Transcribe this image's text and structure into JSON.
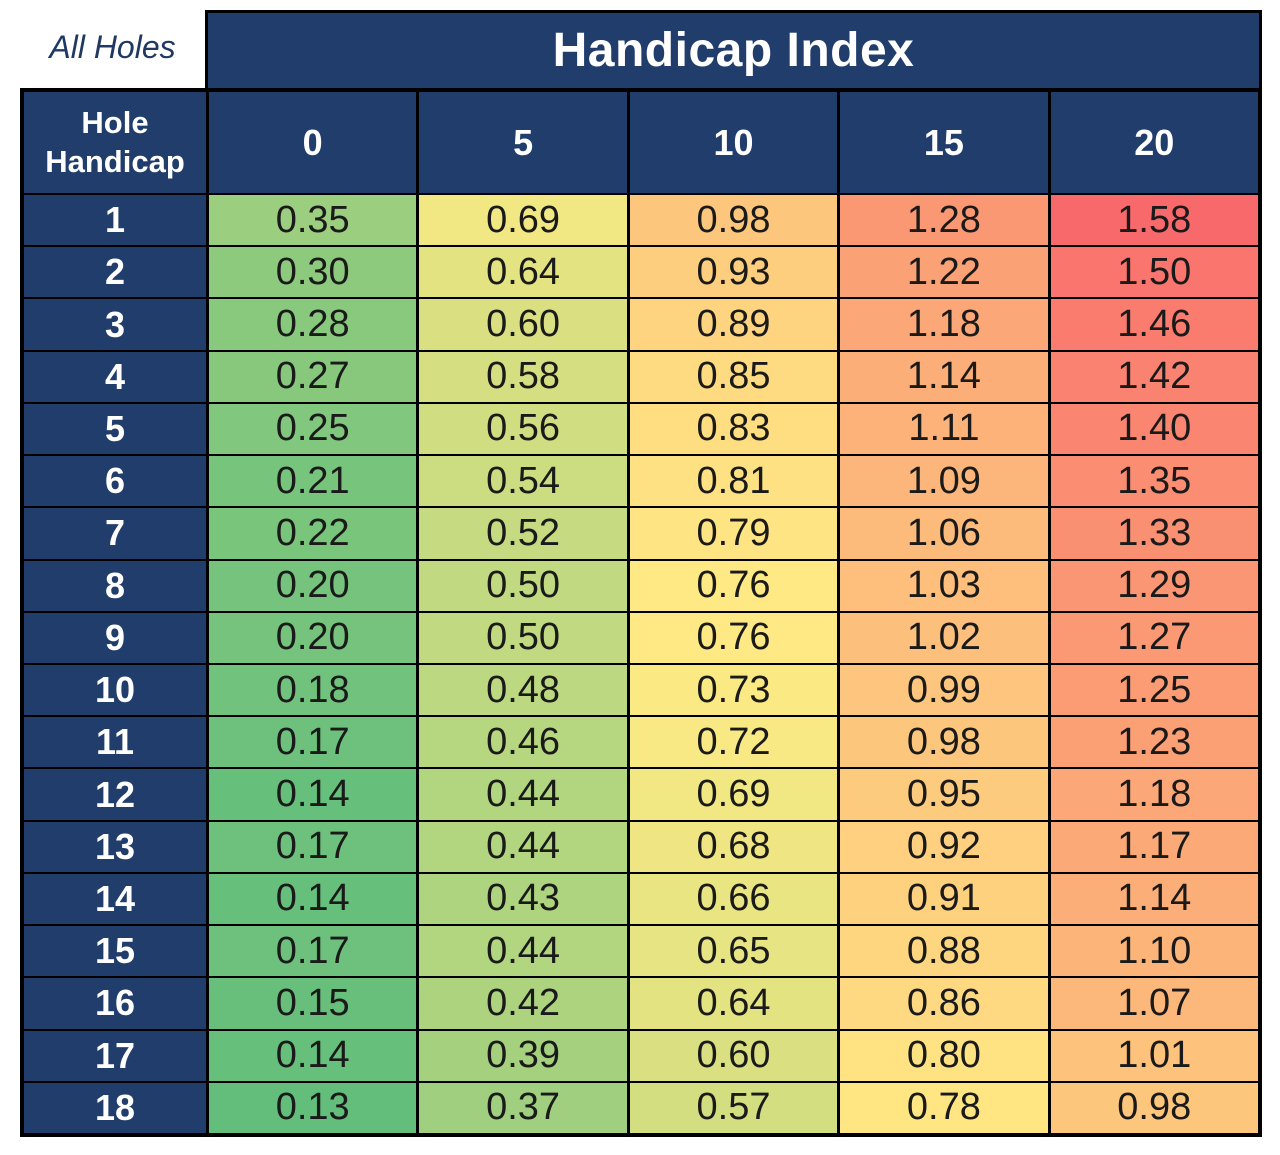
{
  "chart_data": {
    "type": "heatmap",
    "title": "Handicap Index",
    "corner_label": "All Holes",
    "row_axis_label": "Hole Handicap",
    "col_axis_label": "Handicap Index",
    "columns": [
      "0",
      "5",
      "10",
      "15",
      "20"
    ],
    "row_labels": [
      "1",
      "2",
      "3",
      "4",
      "5",
      "6",
      "7",
      "8",
      "9",
      "10",
      "11",
      "12",
      "13",
      "14",
      "15",
      "16",
      "17",
      "18"
    ],
    "values": [
      [
        0.35,
        0.69,
        0.98,
        1.28,
        1.58
      ],
      [
        0.3,
        0.64,
        0.93,
        1.22,
        1.5
      ],
      [
        0.28,
        0.6,
        0.89,
        1.18,
        1.46
      ],
      [
        0.27,
        0.58,
        0.85,
        1.14,
        1.42
      ],
      [
        0.25,
        0.56,
        0.83,
        1.11,
        1.4
      ],
      [
        0.21,
        0.54,
        0.81,
        1.09,
        1.35
      ],
      [
        0.22,
        0.52,
        0.79,
        1.06,
        1.33
      ],
      [
        0.2,
        0.5,
        0.76,
        1.03,
        1.29
      ],
      [
        0.2,
        0.5,
        0.76,
        1.02,
        1.27
      ],
      [
        0.18,
        0.48,
        0.73,
        0.99,
        1.25
      ],
      [
        0.17,
        0.46,
        0.72,
        0.98,
        1.23
      ],
      [
        0.14,
        0.44,
        0.69,
        0.95,
        1.18
      ],
      [
        0.17,
        0.44,
        0.68,
        0.92,
        1.17
      ],
      [
        0.14,
        0.43,
        0.66,
        0.91,
        1.14
      ],
      [
        0.17,
        0.44,
        0.65,
        0.88,
        1.1
      ],
      [
        0.15,
        0.42,
        0.64,
        0.86,
        1.07
      ],
      [
        0.14,
        0.39,
        0.6,
        0.8,
        1.01
      ],
      [
        0.13,
        0.37,
        0.57,
        0.78,
        0.98
      ]
    ],
    "value_decimals": 2,
    "grid_on": true,
    "legend_position": "none",
    "colorscale": {
      "anchors": "min-median-max",
      "min_color": "#63BE7B",
      "mid_color": "#FFEB84",
      "max_color": "#F8696B"
    },
    "colors": {
      "header_bg": "#203D6B",
      "header_text": "#FFFFFF",
      "cell_text": "#1A1A1A",
      "border": "#000000",
      "corner_text": "#1F3864",
      "page_bg": "#FFFFFF"
    }
  }
}
